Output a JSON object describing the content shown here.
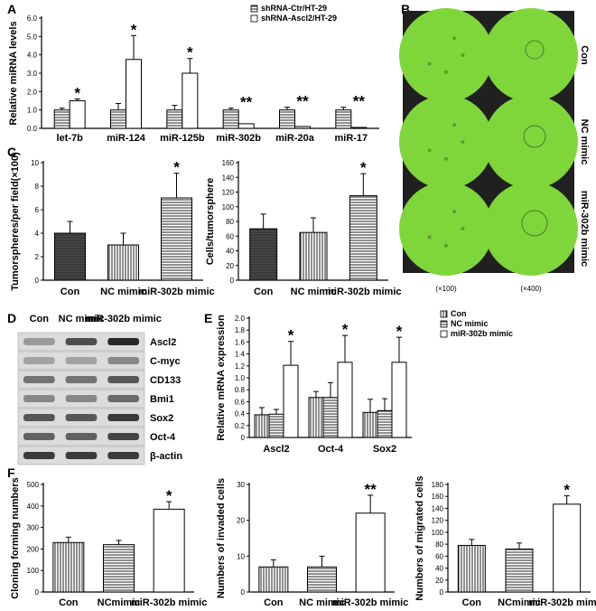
{
  "panels": {
    "A": "A",
    "B": "B",
    "C": "C",
    "D": "D",
    "E": "E",
    "F": "F"
  },
  "microscopy": {
    "rows": [
      "Con",
      "NC mimic",
      "miR-302b mimic"
    ],
    "columns": [
      "(×100)",
      "(×400)"
    ],
    "colors": {
      "field": "#7fd63a",
      "dark": "#202020"
    }
  },
  "western": {
    "lanes": [
      "Con",
      "NC mimic",
      "miR-302b mimic"
    ],
    "bands": [
      "Ascl2",
      "C-myc",
      "CD133",
      "Bmi1",
      "Sox2",
      "Oct-4",
      "β-actin"
    ],
    "intensity": [
      [
        0.35,
        0.75,
        0.95
      ],
      [
        0.3,
        0.3,
        0.45
      ],
      [
        0.55,
        0.55,
        0.7
      ],
      [
        0.45,
        0.45,
        0.6
      ],
      [
        0.7,
        0.7,
        0.85
      ],
      [
        0.65,
        0.65,
        0.8
      ],
      [
        0.85,
        0.85,
        0.85
      ]
    ]
  },
  "chart_data": [
    {
      "id": "A",
      "type": "bar",
      "ylabel": "Relative miRNA levels",
      "ylim": [
        0,
        6
      ],
      "yticks": [
        "0.0",
        "1.0",
        "2.0",
        "3.0",
        "4.0",
        "5.0",
        "6.0"
      ],
      "categories": [
        "let-7b",
        "miR-124",
        "miR-125b",
        "miR-302b",
        "miR-20a",
        "miR-17"
      ],
      "series": [
        {
          "name": "shRNA-Ctr/HT-29",
          "values": [
            1.0,
            1.0,
            1.0,
            1.0,
            1.0,
            1.0
          ],
          "err": [
            0.1,
            0.35,
            0.25,
            0.1,
            0.15,
            0.15
          ],
          "pattern": "hlines"
        },
        {
          "name": "shRNA-Ascl2/HT-29",
          "values": [
            1.5,
            3.75,
            3.0,
            0.25,
            0.1,
            0.05
          ],
          "err": [
            0.1,
            1.3,
            0.8,
            0,
            0,
            0
          ],
          "pattern": "white"
        }
      ],
      "annotations": [
        {
          "category": 0,
          "text": "*"
        },
        {
          "category": 1,
          "text": "*"
        },
        {
          "category": 2,
          "text": "*"
        },
        {
          "category": 3,
          "text": "**"
        },
        {
          "category": 4,
          "text": "**"
        },
        {
          "category": 5,
          "text": "**"
        }
      ],
      "legend": "top-right"
    },
    {
      "id": "C1",
      "type": "bar",
      "ylabel": "Tumorspheres/per field(×100)",
      "ylim": [
        0,
        10
      ],
      "yticks": [
        "0",
        "2",
        "4",
        "6",
        "8",
        "10"
      ],
      "categories": [
        "Con",
        "NC mimic",
        "miR-302b mimic"
      ],
      "series": [
        {
          "values": [
            4,
            3,
            7
          ],
          "err": [
            1.0,
            1.0,
            2.1
          ],
          "patterns": [
            "dark",
            "vlines",
            "hlines"
          ]
        }
      ],
      "annotations": [
        {
          "category": 2,
          "text": "*"
        }
      ]
    },
    {
      "id": "C2",
      "type": "bar",
      "ylabel": "Cells/tumorsphere",
      "ylim": [
        0,
        160
      ],
      "yticks": [
        "0",
        "20",
        "40",
        "60",
        "80",
        "100",
        "120",
        "140",
        "160"
      ],
      "categories": [
        "Con",
        "NC mimic",
        "miR-302b mimic"
      ],
      "series": [
        {
          "values": [
            70,
            65,
            115
          ],
          "err": [
            20,
            20,
            30
          ],
          "patterns": [
            "dark",
            "vlines",
            "hlines"
          ]
        }
      ],
      "annotations": [
        {
          "category": 2,
          "text": "*"
        }
      ]
    },
    {
      "id": "E",
      "type": "bar",
      "ylabel": "Relative mRNA expression",
      "ylim": [
        0,
        2.0
      ],
      "yticks": [
        "0",
        "0.2",
        "0.4",
        "0.6",
        "0.8",
        "1.0",
        "1.2",
        "1.4",
        "1.6",
        "1.8",
        "2.0"
      ],
      "categories": [
        "Ascl2",
        "Oct-4",
        "Sox2"
      ],
      "series": [
        {
          "name": "Con",
          "values": [
            0.38,
            0.67,
            0.42
          ],
          "err": [
            0.12,
            0.1,
            0.22
          ],
          "pattern": "vlines"
        },
        {
          "name": "NC mimic",
          "values": [
            0.39,
            0.67,
            0.45
          ],
          "err": [
            0.08,
            0.25,
            0.2
          ],
          "pattern": "hlines"
        },
        {
          "name": "miR-302b mimic",
          "values": [
            1.21,
            1.26,
            1.26
          ],
          "err": [
            0.4,
            0.45,
            0.42
          ],
          "pattern": "white"
        }
      ],
      "annotations": [
        {
          "category": 0,
          "text": "*"
        },
        {
          "category": 1,
          "text": "*"
        },
        {
          "category": 2,
          "text": "*"
        }
      ],
      "legend": "top-right"
    },
    {
      "id": "F1",
      "type": "bar",
      "ylabel": "Cloning forming numbers",
      "ylim": [
        0,
        500
      ],
      "yticks": [
        "0",
        "100",
        "200",
        "300",
        "400",
        "500"
      ],
      "categories": [
        "Con",
        "NCmimic",
        "miR-302b mimic"
      ],
      "series": [
        {
          "values": [
            230,
            220,
            385
          ],
          "err": [
            25,
            20,
            35
          ],
          "patterns": [
            "vlines",
            "hlines",
            "white"
          ]
        }
      ],
      "annotations": [
        {
          "category": 2,
          "text": "*"
        }
      ]
    },
    {
      "id": "F2",
      "type": "bar",
      "ylabel": "Numbers of invaded cells",
      "ylim": [
        0,
        30
      ],
      "yticks": [
        "0",
        "10",
        "20",
        "30"
      ],
      "categories": [
        "Con",
        "NC mimic",
        "miR-302b mimic"
      ],
      "series": [
        {
          "values": [
            7,
            7,
            22
          ],
          "err": [
            2,
            3,
            5
          ],
          "patterns": [
            "vlines",
            "hlines",
            "white"
          ]
        }
      ],
      "annotations": [
        {
          "category": 2,
          "text": "**"
        }
      ]
    },
    {
      "id": "F3",
      "type": "bar",
      "ylabel": "Numbers of migrated cells",
      "ylim": [
        0,
        180
      ],
      "yticks": [
        "0",
        "20",
        "40",
        "60",
        "80",
        "100",
        "120",
        "140",
        "160",
        "180"
      ],
      "categories": [
        "Con",
        "NCmimic",
        "miR-302b mimic"
      ],
      "series": [
        {
          "values": [
            78,
            72,
            147
          ],
          "err": [
            10,
            10,
            14
          ],
          "patterns": [
            "vlines",
            "hlines",
            "white"
          ]
        }
      ],
      "annotations": [
        {
          "category": 2,
          "text": "*"
        }
      ]
    }
  ]
}
